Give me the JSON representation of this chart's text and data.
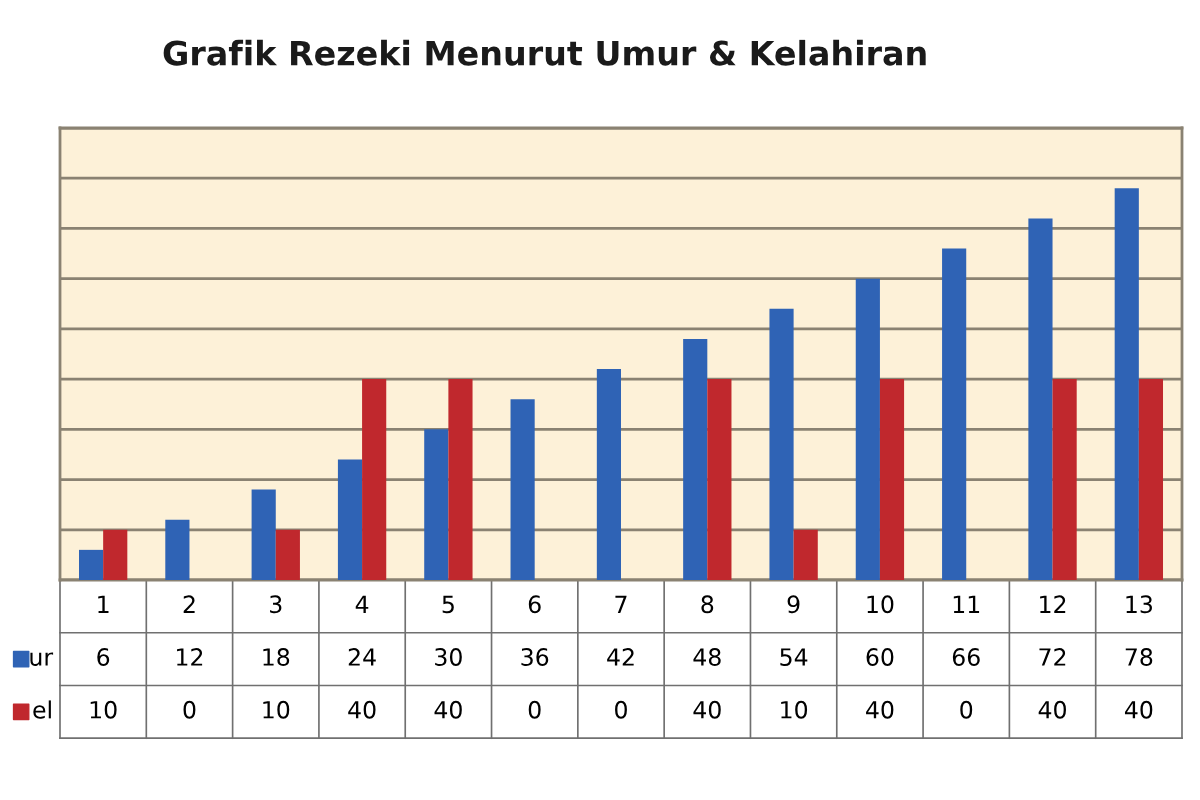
{
  "chart_data": {
    "type": "bar",
    "title": "Grafik Rezeki Menurut Umur & Kelahiran",
    "categories": [
      "1",
      "2",
      "3",
      "4",
      "5",
      "6",
      "7",
      "8",
      "9",
      "10",
      "11",
      "12",
      "13"
    ],
    "series": [
      {
        "name": "ur",
        "color": "#2f63b5",
        "values": [
          6,
          12,
          18,
          24,
          30,
          36,
          42,
          48,
          54,
          60,
          66,
          72,
          78
        ]
      },
      {
        "name": "el",
        "color": "#c0282d",
        "values": [
          10,
          0,
          10,
          40,
          40,
          0,
          0,
          40,
          10,
          40,
          0,
          40,
          40
        ]
      }
    ],
    "ylim": [
      0,
      90
    ],
    "yticks": [
      {
        "value": 0,
        "label": null
      },
      {
        "value": 10,
        "label": null
      },
      {
        "value": 20,
        "label": null
      },
      {
        "value": 30,
        "label": null
      },
      {
        "value": 40,
        "label": null
      },
      {
        "value": 50,
        "label": null
      },
      {
        "value": 60,
        "label": null
      },
      {
        "value": 70,
        "label": null
      },
      {
        "value": 80,
        "label": null
      },
      {
        "value": 90,
        "label": null
      }
    ],
    "tick_labels": "x",
    "grid": "y",
    "data_labels": true,
    "legend": "bottom left"
  }
}
